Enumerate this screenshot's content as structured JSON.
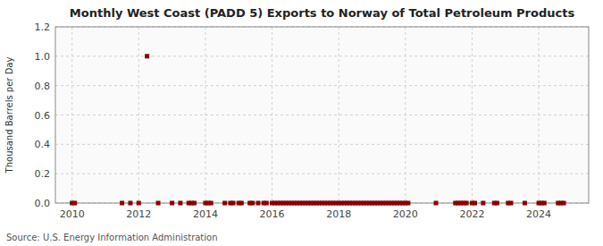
{
  "chart_data": {
    "type": "scatter",
    "title": "Monthly West Coast (PADD 5) Exports to Norway of Total Petroleum Products",
    "y_label": "Thousand Barrels per Day",
    "source": "Source: U.S. Energy Information Administration",
    "color": "#8b0000",
    "marker": "square",
    "grid": true,
    "xlim": [
      2009.5,
      2025.5
    ],
    "xticks": [
      2010,
      2012,
      2014,
      2016,
      2018,
      2020,
      2022,
      2024
    ],
    "ylim": [
      0.0,
      1.2
    ],
    "yticks": [
      {
        "value": 0,
        "label": "0.0"
      },
      0.2,
      0.4,
      0.6,
      0.8,
      {
        "value": 1,
        "label": "1.0"
      },
      1.2
    ],
    "x": [
      2010.0,
      2010.083,
      2011.5,
      2011.75,
      2012.0,
      2012.25,
      2012.583,
      2013.0,
      2013.25,
      2013.5,
      2013.583,
      2013.667,
      2014.0,
      2014.083,
      2014.167,
      2014.583,
      2014.75,
      2014.833,
      2015.0,
      2015.083,
      2015.333,
      2015.417,
      2015.583,
      2015.75,
      2015.833,
      2016.0,
      2016.083,
      2016.167,
      2016.25,
      2016.333,
      2016.417,
      2016.5,
      2016.583,
      2016.667,
      2016.75,
      2016.833,
      2016.917,
      2017.0,
      2017.083,
      2017.167,
      2017.25,
      2017.333,
      2017.417,
      2017.5,
      2017.583,
      2017.667,
      2017.75,
      2017.833,
      2017.917,
      2018.0,
      2018.083,
      2018.167,
      2018.25,
      2018.333,
      2018.417,
      2018.5,
      2018.583,
      2018.667,
      2018.75,
      2018.833,
      2018.917,
      2019.0,
      2019.083,
      2019.167,
      2019.25,
      2019.333,
      2019.417,
      2019.5,
      2019.583,
      2019.667,
      2019.75,
      2019.833,
      2019.917,
      2020.0,
      2020.083,
      2020.917,
      2021.5,
      2021.583,
      2021.667,
      2021.75,
      2021.833,
      2022.0,
      2022.083,
      2022.333,
      2022.667,
      2022.75,
      2023.083,
      2023.167,
      2023.583,
      2024.0,
      2024.083,
      2024.167,
      2024.583,
      2024.667,
      2024.75
    ],
    "values": [
      0.0,
      0.0,
      0.0,
      0.0,
      0.0,
      1.0,
      0.0,
      0.0,
      0.0,
      0.0,
      0.0,
      0.0,
      0.0,
      0.0,
      0.0,
      0.0,
      0.0,
      0.0,
      0.0,
      0.0,
      0.0,
      0.0,
      0.0,
      0.0,
      0.0,
      0.0,
      0.0,
      0.0,
      0.0,
      0.0,
      0.0,
      0.0,
      0.0,
      0.0,
      0.0,
      0.0,
      0.0,
      0.0,
      0.0,
      0.0,
      0.0,
      0.0,
      0.0,
      0.0,
      0.0,
      0.0,
      0.0,
      0.0,
      0.0,
      0.0,
      0.0,
      0.0,
      0.0,
      0.0,
      0.0,
      0.0,
      0.0,
      0.0,
      0.0,
      0.0,
      0.0,
      0.0,
      0.0,
      0.0,
      0.0,
      0.0,
      0.0,
      0.0,
      0.0,
      0.0,
      0.0,
      0.0,
      0.0,
      0.0,
      0.0,
      0.0,
      0.0,
      0.0,
      0.0,
      0.0,
      0.0,
      0.0,
      0.0,
      0.0,
      0.0,
      0.0,
      0.0,
      0.0,
      0.0,
      0.0,
      0.0,
      0.0,
      0.0,
      0.0,
      0.0
    ]
  }
}
